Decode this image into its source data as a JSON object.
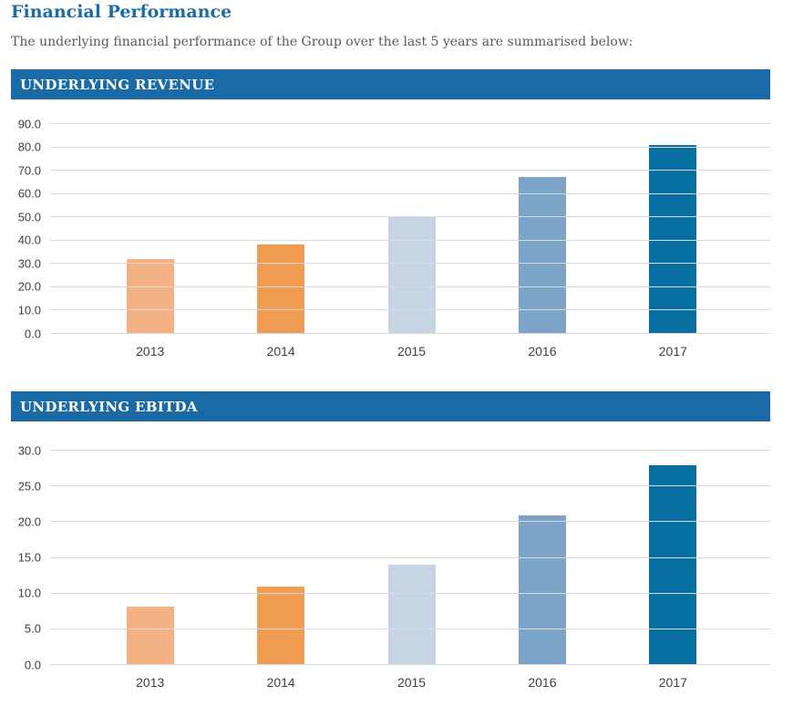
{
  "page": {
    "title": "Financial Performance",
    "intro": "The underlying financial performance of the Group over the last 5 years are summarised below:"
  },
  "colors": {
    "header_bar_blue": "#1a6aa5",
    "title_blue": "#1b6ca6",
    "intro_gray": "#58595b",
    "axis_label_gray": "#404042",
    "gridline_gray": "#d9d9d9"
  },
  "chart_data": [
    {
      "type": "bar",
      "title": "UNDERLYING REVENUE",
      "categories": [
        "2013",
        "2014",
        "2015",
        "2016",
        "2017"
      ],
      "values": [
        32.0,
        38.5,
        50.0,
        67.5,
        81.0
      ],
      "bar_colors": [
        "#f4b183",
        "#f09c52",
        "#c6d4e4",
        "#7ca4c8",
        "#076f9f"
      ],
      "xlabel": "",
      "ylabel": "",
      "ylim": [
        0,
        90
      ],
      "ytick_step": 10,
      "ytick_decimals": 1,
      "grid": true,
      "legend": "none"
    },
    {
      "type": "bar",
      "title": "UNDERLYING EBITDA",
      "categories": [
        "2013",
        "2014",
        "2015",
        "2016",
        "2017"
      ],
      "values": [
        8.2,
        11.0,
        14.0,
        21.0,
        28.0
      ],
      "bar_colors": [
        "#f4b183",
        "#f09c52",
        "#c6d4e4",
        "#7ca4c8",
        "#076f9f"
      ],
      "xlabel": "",
      "ylabel": "",
      "ylim": [
        0,
        30
      ],
      "ytick_step": 5,
      "ytick_decimals": 1,
      "grid": true,
      "legend": "none"
    }
  ]
}
